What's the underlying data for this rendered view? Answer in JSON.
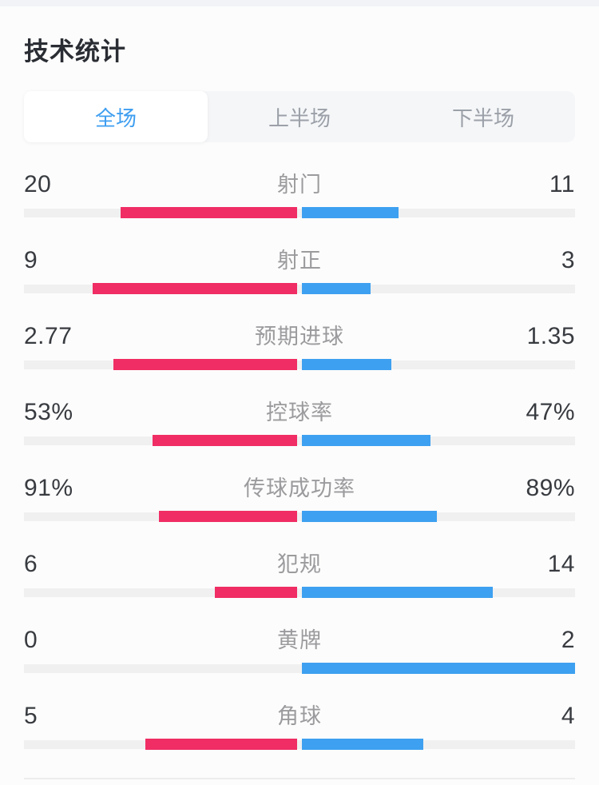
{
  "page": {
    "title": "技术统计"
  },
  "tabs": [
    {
      "label": "全场",
      "active": true
    },
    {
      "label": "上半场",
      "active": false
    },
    {
      "label": "下半场",
      "active": false
    }
  ],
  "stats": [
    {
      "label": "射门",
      "left_display": "20",
      "right_display": "11",
      "left_value": 20,
      "right_value": 11
    },
    {
      "label": "射正",
      "left_display": "9",
      "right_display": "3",
      "left_value": 9,
      "right_value": 3
    },
    {
      "label": "预期进球",
      "left_display": "2.77",
      "right_display": "1.35",
      "left_value": 2.77,
      "right_value": 1.35
    },
    {
      "label": "控球率",
      "left_display": "53%",
      "right_display": "47%",
      "left_value": 53,
      "right_value": 47
    },
    {
      "label": "传球成功率",
      "left_display": "91%",
      "right_display": "89%",
      "left_value": 91,
      "right_value": 89
    },
    {
      "label": "犯规",
      "left_display": "6",
      "right_display": "14",
      "left_value": 6,
      "right_value": 14
    },
    {
      "label": "黄牌",
      "left_display": "0",
      "right_display": "2",
      "left_value": 0,
      "right_value": 2
    },
    {
      "label": "角球",
      "left_display": "5",
      "right_display": "4",
      "left_value": 5,
      "right_value": 4
    }
  ],
  "colors": {
    "home_bar": "#f02d64",
    "away_bar": "#3ea0f0",
    "track": "#f0f0f1",
    "active_tab_text": "#3e9ef0"
  }
}
